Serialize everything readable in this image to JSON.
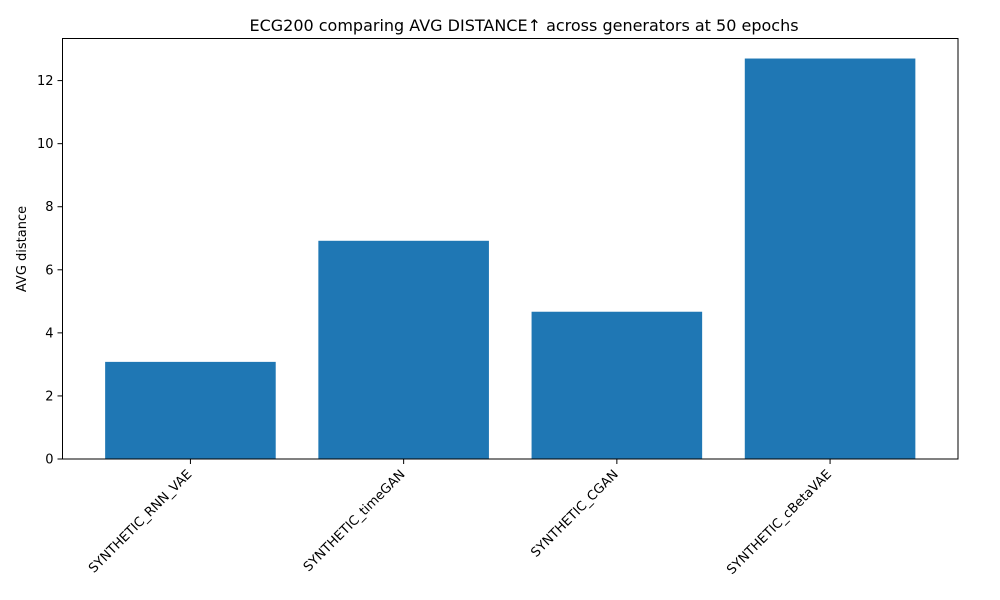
{
  "chart_data": {
    "type": "bar",
    "title": "ECG200 comparing AVG DISTANCE↑  across generators at 50 epochs",
    "xlabel": "",
    "ylabel": "AVG distance",
    "categories": [
      "SYNTHETIC_RNN_VAE",
      "SYNTHETIC_timeGAN",
      "SYNTHETIC_CGAN",
      "SYNTHETIC_cBetaVAE"
    ],
    "values": [
      3.08,
      6.92,
      4.67,
      12.7
    ],
    "ylim": [
      0,
      13.335
    ],
    "yticks": [
      0,
      2,
      4,
      6,
      8,
      10,
      12
    ],
    "grid": false,
    "legend": "none",
    "bar_color": "#1f77b4"
  }
}
